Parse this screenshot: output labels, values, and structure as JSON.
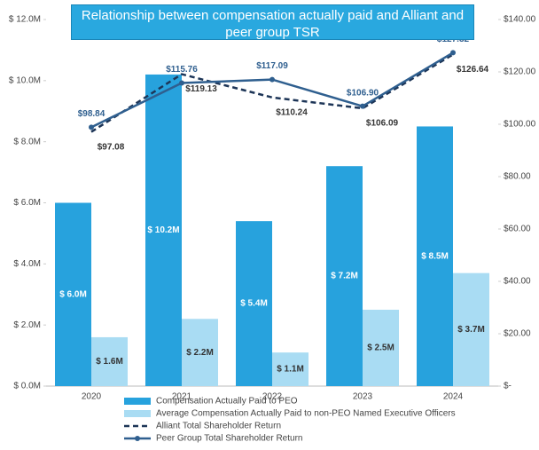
{
  "chart_data": {
    "type": "bar",
    "title": "Relationship between compensation actually paid and Alliant and peer group TSR",
    "categories": [
      "2020",
      "2021",
      "2022",
      "2023",
      "2024"
    ],
    "ylim": [
      0,
      12
    ],
    "yticks": [
      {
        "value": 0,
        "label": "$ 0.0M"
      },
      {
        "value": 2,
        "label": "$ 2.0M"
      },
      {
        "value": 4,
        "label": "$ 4.0M"
      },
      {
        "value": 6,
        "label": "$ 6.0M"
      },
      {
        "value": 8,
        "label": "$ 8.0M"
      },
      {
        "value": 10,
        "label": "$ 10.0M"
      },
      {
        "value": 12,
        "label": "$ 12.0M"
      }
    ],
    "y2lim": [
      0,
      140
    ],
    "y2ticks": [
      {
        "value": 0,
        "label": "$-"
      },
      {
        "value": 20,
        "label": "$20.00"
      },
      {
        "value": 40,
        "label": "$40.00"
      },
      {
        "value": 60,
        "label": "$60.00"
      },
      {
        "value": 80,
        "label": "$80.00"
      },
      {
        "value": 100,
        "label": "$100.00"
      },
      {
        "value": 120,
        "label": "$120.00"
      },
      {
        "value": 140,
        "label": "$140.00"
      }
    ],
    "series": [
      {
        "name": "Compensation Actually Paid to PEO",
        "type": "bar",
        "color": "#27a2dd",
        "values": [
          6.0,
          10.2,
          5.4,
          7.2,
          8.5
        ],
        "value_labels": [
          "$ 6.0M",
          "$ 10.2M",
          "$ 5.4M",
          "$ 7.2M",
          "$ 8.5M"
        ]
      },
      {
        "name": "Average Compensation Actually Paid to non-PEO Named Executive Officers",
        "type": "bar",
        "color": "#a9dcf3",
        "values": [
          1.6,
          2.2,
          1.1,
          2.5,
          3.7
        ],
        "value_labels": [
          "$ 1.6M",
          "$ 2.2M",
          "$ 1.1M",
          "$ 2.5M",
          "$ 3.7M"
        ]
      },
      {
        "name": "Alliant Total Shareholder Return",
        "type": "line",
        "axis": "y2",
        "color": "#1d3557",
        "dashed": true,
        "values": [
          97.08,
          119.13,
          110.24,
          106.09,
          126.64
        ],
        "value_labels": [
          "$97.08",
          "$119.13",
          "$110.24",
          "$106.09",
          "$126.64"
        ]
      },
      {
        "name": "Peer Group Total Shareholder Return",
        "type": "line",
        "axis": "y2",
        "color": "#2f5f8f",
        "markers": true,
        "values": [
          98.84,
          115.76,
          117.09,
          106.9,
          127.32
        ],
        "value_labels": [
          "$98.84",
          "$115.76",
          "$117.09",
          "$106.90",
          "$127.32"
        ]
      }
    ]
  }
}
